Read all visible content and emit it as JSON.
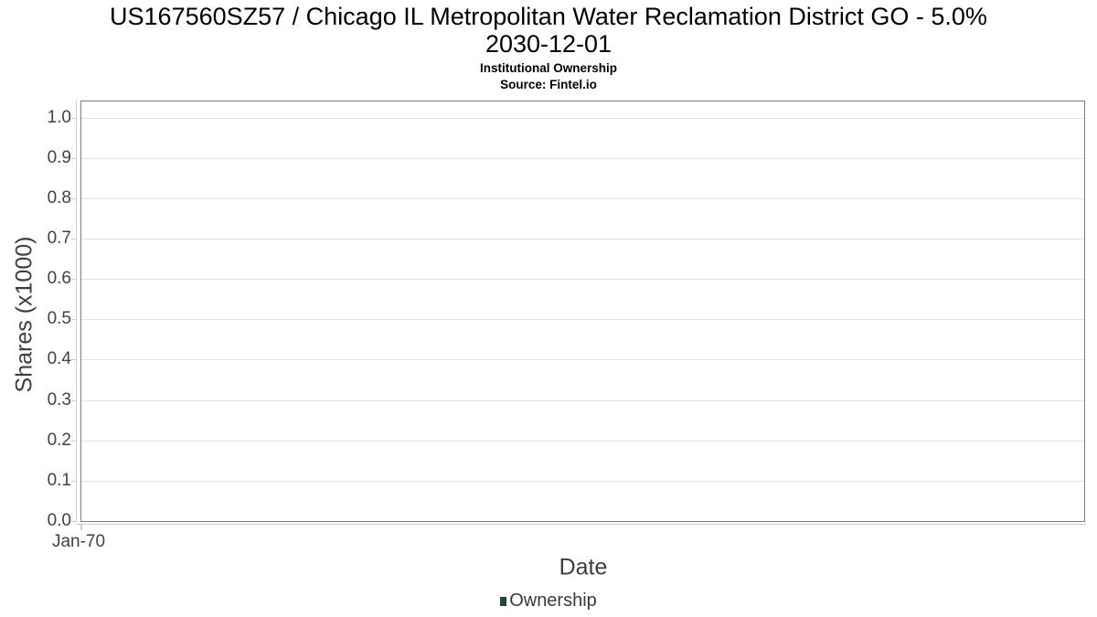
{
  "chart_data": {
    "type": "line",
    "title_line1": "US167560SZ57 / Chicago IL Metropolitan Water Reclamation District GO - 5.0%",
    "title_line2": "2030-12-01",
    "subtitle": "Institutional Ownership",
    "source": "Source: Fintel.io",
    "xlabel": "Date",
    "ylabel": "Shares (x1000)",
    "xticks": [
      "Jan-70"
    ],
    "yticks": [
      "0.0",
      "0.1",
      "0.2",
      "0.3",
      "0.4",
      "0.5",
      "0.6",
      "0.7",
      "0.8",
      "0.9",
      "1.0"
    ],
    "ylim": [
      0,
      1.04
    ],
    "grid": "horizontal",
    "legend": {
      "position": "bottom",
      "items": [
        {
          "label": "Ownership",
          "color": "#1e4d2b"
        }
      ]
    },
    "series": [
      {
        "name": "Ownership",
        "points": []
      }
    ],
    "colors": {
      "title": "#000000",
      "tick_label": "#424242",
      "axis_title": "#3d3d3d",
      "legend_text": "#3a3a3a",
      "grid": "#e2e2e2",
      "plot_border": "#7e7e7e",
      "axis_line": "#cfcfcf",
      "background": "#ffffff"
    }
  }
}
